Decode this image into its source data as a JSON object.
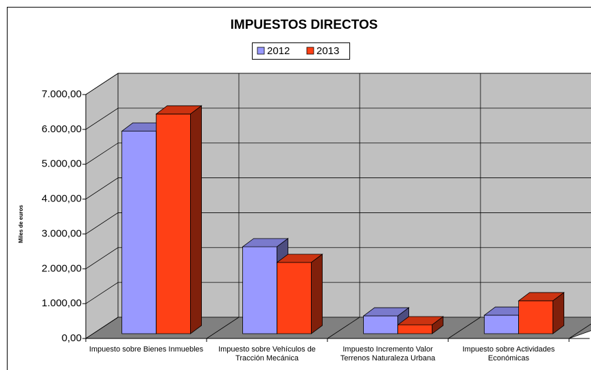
{
  "chart_data": {
    "type": "bar3d",
    "title": "IMPUESTOS DIRECTOS",
    "ylabel": "Miles de euros",
    "categories": [
      "Impuesto sobre Bienes Inmuebles",
      "Impuesto sobre Vehículos de Tracción Mecánica",
      "Impuesto Incremento Valor Terrenos Naturaleza Urbana",
      "Impuesto sobre Actividades Económicas"
    ],
    "series": [
      {
        "name": "2012",
        "color": "#9999ff",
        "values": [
          5815,
          2495,
          510,
          530
        ]
      },
      {
        "name": "2013",
        "color": "#ff4015",
        "values": [
          6306,
          2045,
          255,
          945
        ]
      }
    ],
    "ylim": [
      0,
      7000
    ],
    "yticks": [
      {
        "value": 0,
        "label": "0,00"
      },
      {
        "value": 1000,
        "label": "1.000,00"
      },
      {
        "value": 2000,
        "label": "2.000,00"
      },
      {
        "value": 3000,
        "label": "3.000,00"
      },
      {
        "value": 4000,
        "label": "4.000,00"
      },
      {
        "value": 5000,
        "label": "5.000,00"
      },
      {
        "value": 6000,
        "label": "6.000,00"
      },
      {
        "value": 7000,
        "label": "7.000,00"
      }
    ],
    "grid": true,
    "legend": "top"
  }
}
